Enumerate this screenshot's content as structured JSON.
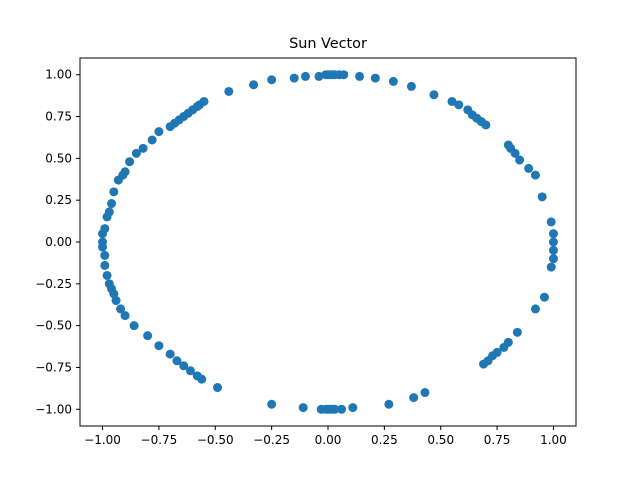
{
  "chart_data": {
    "type": "scatter",
    "title": "Sun Vector",
    "xlabel": "",
    "ylabel": "",
    "xlim": [
      -1.1,
      1.1
    ],
    "ylim": [
      -1.1,
      1.1
    ],
    "xticks": [
      -1.0,
      -0.75,
      -0.5,
      -0.25,
      0.0,
      0.25,
      0.5,
      0.75,
      1.0
    ],
    "yticks": [
      -1.0,
      -0.75,
      -0.5,
      -0.25,
      0.0,
      0.25,
      0.5,
      0.75,
      1.0
    ],
    "xtick_labels": [
      "−1.00",
      "−0.75",
      "−0.50",
      "−0.25",
      "0.00",
      "0.25",
      "0.50",
      "0.75",
      "1.00"
    ],
    "ytick_labels": [
      "−1.00",
      "−0.75",
      "−0.50",
      "−0.25",
      "0.00",
      "0.25",
      "0.50",
      "0.75",
      "1.00"
    ],
    "grid": false,
    "marker_color": "#1f77b4",
    "series": [
      {
        "x": [
          -0.01,
          0.0,
          0.01,
          0.02,
          0.03,
          0.05,
          -0.04,
          0.07,
          -0.1,
          0.14,
          -0.15,
          0.21,
          -0.25,
          0.29,
          -0.33,
          0.37,
          -0.44,
          0.47,
          -0.55,
          -0.57,
          -0.58,
          -0.6,
          -0.62,
          -0.64,
          -0.66,
          -0.68,
          -0.7,
          -0.75,
          -0.78,
          -0.82,
          -0.85,
          -0.88,
          -0.9,
          -0.91,
          -0.93,
          -0.95,
          -0.96,
          -0.97,
          -0.98,
          -0.99,
          -1.0,
          -1.0,
          -1.0,
          -0.99,
          0.55,
          0.58,
          0.62,
          0.64,
          0.66,
          0.68,
          0.7,
          0.8,
          0.81,
          0.83,
          0.85,
          0.89,
          0.92,
          0.95,
          0.99,
          1.0,
          1.0,
          1.0,
          1.0,
          0.99,
          -0.99,
          -0.98,
          -0.97,
          -0.96,
          -0.95,
          -0.94,
          -0.92,
          -0.9,
          -0.86,
          -0.8,
          -0.75,
          -0.7,
          -0.67,
          -0.64,
          -0.61,
          -0.58,
          -0.56,
          -0.49,
          0.96,
          0.92,
          0.84,
          0.8,
          0.78,
          0.75,
          0.73,
          0.71,
          0.69,
          -0.25,
          -0.11,
          -0.03,
          -0.01,
          0.0,
          0.01,
          0.02,
          0.03,
          0.06,
          0.11,
          0.27,
          0.38,
          0.43
        ],
        "y": [
          1.0,
          1.0,
          1.0,
          1.0,
          1.0,
          1.0,
          0.99,
          1.0,
          0.99,
          0.99,
          0.98,
          0.98,
          0.97,
          0.96,
          0.94,
          0.93,
          0.9,
          0.88,
          0.84,
          0.82,
          0.81,
          0.79,
          0.77,
          0.75,
          0.73,
          0.71,
          0.69,
          0.66,
          0.61,
          0.56,
          0.53,
          0.48,
          0.42,
          0.4,
          0.37,
          0.3,
          0.23,
          0.18,
          0.15,
          0.08,
          0.05,
          0.0,
          -0.03,
          -0.08,
          0.84,
          0.82,
          0.79,
          0.76,
          0.74,
          0.72,
          0.7,
          0.58,
          0.56,
          0.53,
          0.49,
          0.44,
          0.4,
          0.27,
          0.12,
          0.05,
          0.0,
          -0.05,
          -0.1,
          -0.15,
          -0.14,
          -0.2,
          -0.25,
          -0.28,
          -0.31,
          -0.35,
          -0.4,
          -0.44,
          -0.5,
          -0.56,
          -0.62,
          -0.67,
          -0.71,
          -0.74,
          -0.77,
          -0.8,
          -0.82,
          -0.87,
          -0.33,
          -0.4,
          -0.54,
          -0.6,
          -0.63,
          -0.66,
          -0.68,
          -0.71,
          -0.73,
          -0.97,
          -0.99,
          -1.0,
          -1.0,
          -1.0,
          -1.0,
          -1.0,
          -1.0,
          -1.0,
          -0.99,
          -0.97,
          -0.93,
          -0.9
        ]
      }
    ]
  }
}
